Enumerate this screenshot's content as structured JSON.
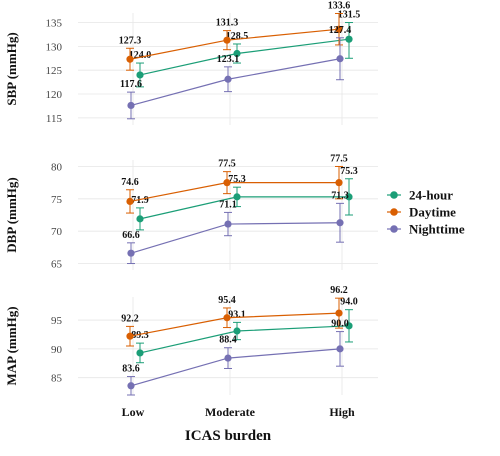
{
  "chart_data": {
    "type": "line",
    "xlabel": "ICAS burden",
    "categories": [
      "Low",
      "Moderate",
      "High"
    ],
    "legend": {
      "placement": "right",
      "entries": [
        {
          "name": "24-hour",
          "color": "#1b9e77"
        },
        {
          "name": "Daytime",
          "color": "#d95f02"
        },
        {
          "name": "Nighttime",
          "color": "#7570b3"
        }
      ]
    },
    "grid": true,
    "panels": [
      {
        "id": "sbp",
        "ylabel": "SBP (mmHg)",
        "ylim": [
          113.5,
          137
        ],
        "yticks": [
          115,
          120,
          125,
          130,
          135
        ],
        "series": [
          {
            "name": "24-hour",
            "color": "#1b9e77",
            "values": [
              124.0,
              128.5,
              131.5
            ],
            "lower": [
              121.5,
              126.5,
              127.5
            ],
            "upper": [
              126.5,
              130.5,
              135.0
            ],
            "labels": [
              "124.0",
              "128.5",
              "131.5"
            ]
          },
          {
            "name": "Daytime",
            "color": "#d95f02",
            "values": [
              127.3,
              131.3,
              133.6
            ],
            "lower": [
              125.0,
              129.3,
              130.3
            ],
            "upper": [
              129.6,
              133.3,
              136.9
            ],
            "labels": [
              "127.3",
              "131.3",
              "133.6"
            ]
          },
          {
            "name": "Nighttime",
            "color": "#7570b3",
            "values": [
              117.6,
              123.1,
              127.4
            ],
            "lower": [
              114.8,
              120.5,
              123.0
            ],
            "upper": [
              120.4,
              125.7,
              131.8
            ],
            "labels": [
              "117.6",
              "123.1",
              "127.4"
            ]
          }
        ]
      },
      {
        "id": "dbp",
        "ylabel": "DBP (mmHg)",
        "ylim": [
          64,
          81
        ],
        "yticks": [
          65,
          70,
          75,
          80
        ],
        "series": [
          {
            "name": "24-hour",
            "color": "#1b9e77",
            "values": [
              71.9,
              75.3,
              75.3
            ],
            "lower": [
              70.2,
              73.8,
              72.5
            ],
            "upper": [
              73.6,
              76.8,
              78.1
            ],
            "labels": [
              "71.9",
              "75.3",
              "75.3"
            ]
          },
          {
            "name": "Daytime",
            "color": "#d95f02",
            "values": [
              74.6,
              77.5,
              77.5
            ],
            "lower": [
              72.8,
              75.8,
              75.0
            ],
            "upper": [
              76.4,
              79.2,
              80.0
            ],
            "labels": [
              "74.6",
              "77.5",
              "77.5"
            ]
          },
          {
            "name": "Nighttime",
            "color": "#7570b3",
            "values": [
              66.6,
              71.1,
              71.3
            ],
            "lower": [
              65.0,
              69.3,
              68.3
            ],
            "upper": [
              68.2,
              72.9,
              74.3
            ],
            "labels": [
              "66.6",
              "71.1",
              "71.3"
            ]
          }
        ]
      },
      {
        "id": "map",
        "ylabel": "MAP (mmHg)",
        "ylim": [
          82,
          99
        ],
        "yticks": [
          85,
          90,
          95
        ],
        "series": [
          {
            "name": "24-hour",
            "color": "#1b9e77",
            "values": [
              89.3,
              93.1,
              94.0
            ],
            "lower": [
              87.6,
              91.6,
              91.2
            ],
            "upper": [
              91.0,
              94.6,
              96.8
            ],
            "labels": [
              "89.3",
              "93.1",
              "94.0"
            ]
          },
          {
            "name": "Daytime",
            "color": "#d95f02",
            "values": [
              92.2,
              95.4,
              96.2
            ],
            "lower": [
              90.5,
              93.7,
              93.6
            ],
            "upper": [
              93.9,
              97.1,
              98.8
            ],
            "labels": [
              "92.2",
              "95.4",
              "96.2"
            ]
          },
          {
            "name": "Nighttime",
            "color": "#7570b3",
            "values": [
              83.6,
              88.4,
              90.0
            ],
            "lower": [
              82.0,
              86.6,
              87.0
            ],
            "upper": [
              85.2,
              90.2,
              93.0
            ],
            "labels": [
              "83.6",
              "88.4",
              "90.0"
            ]
          }
        ]
      }
    ]
  }
}
